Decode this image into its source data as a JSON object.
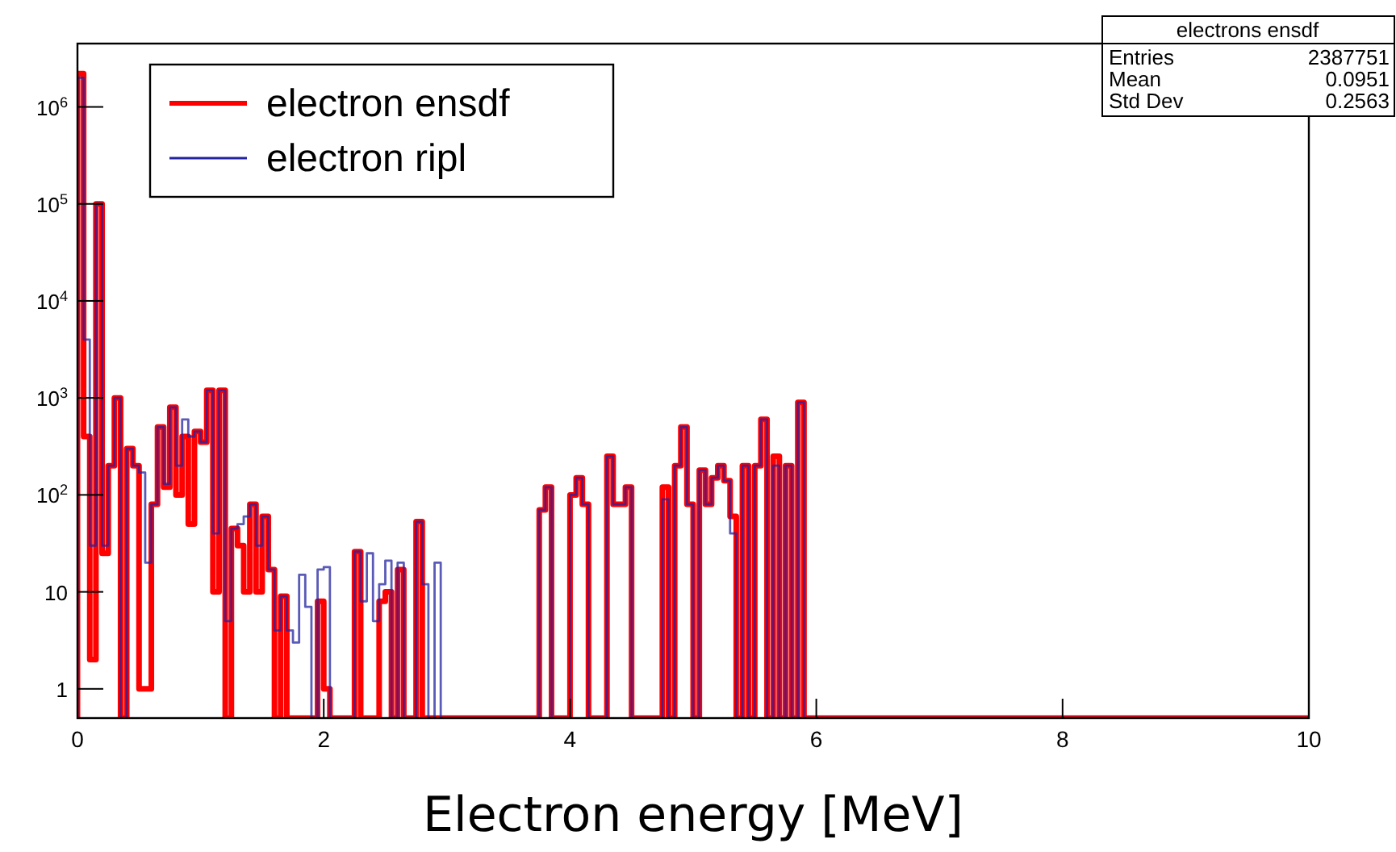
{
  "chart_data": {
    "type": "histogram",
    "xlabel": "Electron energy [MeV]",
    "bins": [
      0,
      0.05,
      0.1,
      0.15,
      0.2,
      0.25,
      0.3,
      0.35,
      0.4,
      0.45,
      0.5,
      0.55,
      0.6,
      0.65,
      0.7,
      0.75,
      0.8,
      0.85,
      0.9,
      0.95,
      1,
      1.05,
      1.1,
      1.15,
      1.2,
      1.25,
      1.3,
      1.35,
      1.4,
      1.45,
      1.5,
      1.55,
      1.6,
      1.65,
      1.7,
      1.75,
      1.8,
      1.85,
      1.9,
      1.95,
      2,
      2.05,
      2.1,
      2.15,
      2.2,
      2.25,
      2.3,
      2.35,
      2.4,
      2.45,
      2.5,
      2.55,
      2.6,
      2.65,
      2.7,
      2.75,
      2.8,
      2.85,
      2.9,
      2.95,
      3,
      3.05,
      3.1,
      3.15,
      3.2,
      3.25,
      3.3,
      3.35,
      3.4,
      3.45,
      3.5,
      3.55,
      3.6,
      3.65,
      3.7,
      3.75,
      3.8,
      3.85,
      3.9,
      3.95,
      4,
      4.05,
      4.1,
      4.15,
      4.2,
      4.25,
      4.3,
      4.35,
      4.4,
      4.45,
      4.5,
      4.55,
      4.6,
      4.65,
      4.7,
      4.75,
      4.8,
      4.85,
      4.9,
      4.95,
      5,
      5.05,
      5.1,
      5.15,
      5.2,
      5.25,
      5.3,
      5.35,
      5.4,
      5.45,
      5.5,
      5.55,
      5.6,
      5.65,
      5.7,
      5.75,
      5.8,
      5.85,
      5.9,
      5.95,
      6,
      10
    ],
    "series": [
      {
        "name": "electron ensdf",
        "color": "#ff0000",
        "values": [
          2200000,
          400,
          2,
          100000,
          25,
          200,
          1000,
          null,
          300,
          200,
          1,
          1,
          80,
          500,
          120,
          800,
          100,
          400,
          50,
          450,
          350,
          1200,
          10,
          1200,
          null,
          45,
          30,
          10,
          80,
          10,
          60,
          17,
          null,
          9,
          null,
          null,
          null,
          null,
          null,
          8,
          1,
          null,
          null,
          null,
          null,
          26,
          null,
          null,
          null,
          8,
          10,
          null,
          17,
          null,
          null,
          53,
          null,
          null,
          null,
          null,
          null,
          null,
          null,
          null,
          null,
          null,
          null,
          null,
          null,
          null,
          null,
          null,
          null,
          null,
          null,
          70,
          120,
          null,
          null,
          null,
          100,
          150,
          80,
          null,
          null,
          null,
          250,
          80,
          80,
          120,
          null,
          null,
          null,
          null,
          null,
          120,
          null,
          200,
          500,
          80,
          null,
          180,
          80,
          150,
          200,
          140,
          60,
          null,
          200,
          null,
          200,
          600,
          null,
          250,
          null,
          200,
          null,
          900,
          null,
          null,
          null
        ]
      },
      {
        "name": "electron ripl",
        "color": "#2323a0",
        "values": [
          2000000,
          4000,
          30,
          100000,
          30,
          200,
          1000,
          null,
          300,
          200,
          170,
          20,
          80,
          500,
          130,
          800,
          200,
          600,
          400,
          450,
          350,
          1200,
          40,
          1200,
          5,
          45,
          50,
          60,
          80,
          30,
          60,
          17,
          4,
          9,
          4,
          3,
          15,
          7,
          null,
          17,
          18,
          null,
          null,
          null,
          null,
          26,
          8,
          25,
          5,
          12,
          21,
          null,
          20,
          null,
          null,
          53,
          12,
          null,
          20,
          null,
          null,
          null,
          null,
          null,
          null,
          null,
          null,
          null,
          null,
          null,
          null,
          null,
          null,
          null,
          null,
          70,
          120,
          null,
          null,
          null,
          100,
          150,
          80,
          null,
          null,
          null,
          250,
          80,
          80,
          120,
          null,
          null,
          null,
          null,
          null,
          90,
          null,
          200,
          500,
          80,
          null,
          180,
          80,
          150,
          200,
          140,
          40,
          null,
          200,
          null,
          200,
          600,
          null,
          200,
          null,
          200,
          null,
          900,
          null,
          null,
          null
        ]
      }
    ],
    "xlim": [
      0,
      10
    ],
    "xticks": [
      0,
      2,
      4,
      6,
      8,
      10
    ],
    "ylim": [
      0.5,
      4500000
    ],
    "log": true,
    "yticks": [
      1,
      10,
      {
        "value": 100,
        "label": "10$^{2}$"
      },
      {
        "value": 1000,
        "label": "10$^{3}$"
      },
      {
        "value": 10000,
        "label": "10$^{4}$"
      },
      {
        "value": 100000,
        "label": "10$^{5}$"
      },
      {
        "value": 1000000,
        "label": "10$^{6}$"
      }
    ],
    "grid": false,
    "legend": "top left",
    "annotations": [
      "electrons ensdf",
      "Entries",
      "2387751",
      "Mean",
      "0.0951",
      "Std Dev",
      "0.2563"
    ]
  }
}
